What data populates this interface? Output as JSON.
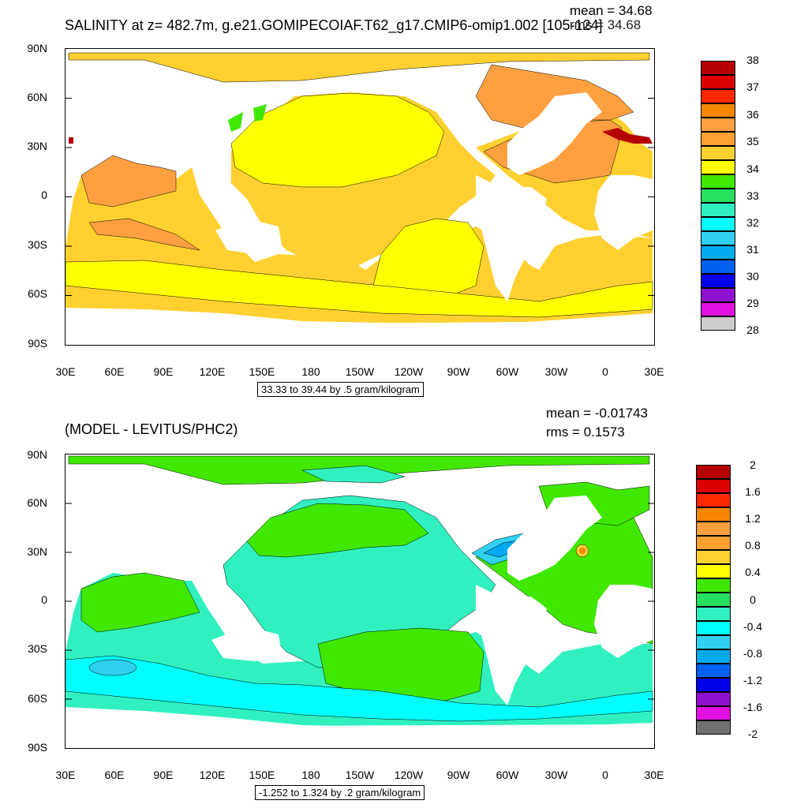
{
  "panels": [
    {
      "title": "SALINITY at z= 482.7m, g.e21.GOMIPECOIAF.T62_g17.CMIP6-omip1.002 [105-124]",
      "mean_label": "mean = 34.68",
      "rms_label": "rms = 34.68",
      "info": "33.33 to 39.44 by .5 gram/kilogram",
      "lat_labels": [
        "90N",
        "60N",
        "30N",
        "0",
        "30S",
        "60S",
        "90S"
      ],
      "lon_labels": [
        "30E",
        "60E",
        "90E",
        "120E",
        "150E",
        "180",
        "150W",
        "120W",
        "90W",
        "60W",
        "30W",
        "0",
        "30E"
      ],
      "colorbar": {
        "labels": [
          "38",
          "37",
          "36",
          "35",
          "34",
          "33",
          "32",
          "31",
          "30",
          "29",
          "28"
        ],
        "colors": [
          "#b40000",
          "#dc0000",
          "#ff2800",
          "#f58700",
          "#ffa040",
          "#ffd030",
          "#ffff00",
          "#40e800",
          "#28e060",
          "#30f0c0",
          "#00ffff",
          "#30d0f0",
          "#00aaf0",
          "#0060f0",
          "#0000e8",
          "#9010d0",
          "#e010e0",
          "#cccccc",
          "#707070"
        ]
      }
    },
    {
      "title": "(MODEL - LEVITUS/PHC2)",
      "mean_label": "mean = -0.01743",
      "rms_label": "rms = 0.1573",
      "info": "-1.252 to 1.324 by .2 gram/kilogram",
      "lat_labels": [
        "90N",
        "60N",
        "30N",
        "0",
        "30S",
        "60S",
        "90S"
      ],
      "lon_labels": [
        "30E",
        "60E",
        "90E",
        "120E",
        "150E",
        "180",
        "150W",
        "120W",
        "90W",
        "60W",
        "30W",
        "0",
        "30E"
      ],
      "colorbar": {
        "labels": [
          "2",
          "1.6",
          "1.2",
          "0.8",
          "0.4",
          "0",
          "-0.4",
          "-0.8",
          "-1.2",
          "-1.6",
          "-2"
        ],
        "colors": [
          "#b40000",
          "#dc0000",
          "#ff2800",
          "#f58700",
          "#ffa040",
          "#ffd030",
          "#ffff00",
          "#40e800",
          "#28e060",
          "#30f0c0",
          "#00ffff",
          "#30d0f0",
          "#00aaf0",
          "#0060f0",
          "#0000e8",
          "#9010d0",
          "#e010e0",
          "#cccccc",
          "#707070"
        ]
      }
    }
  ]
}
